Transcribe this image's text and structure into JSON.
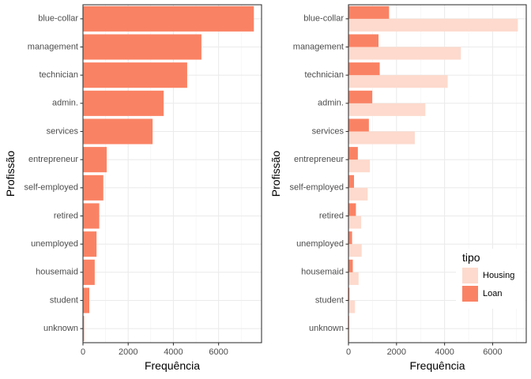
{
  "chart_data": [
    {
      "type": "bar",
      "orientation": "horizontal",
      "categories": [
        "blue-collar",
        "management",
        "technician",
        "admin.",
        "services",
        "entrepreneur",
        "self-employed",
        "retired",
        "unemployed",
        "housemaid",
        "student",
        "unknown"
      ],
      "series": [
        {
          "values": [
            7560,
            5240,
            4610,
            3570,
            3080,
            1050,
            900,
            720,
            600,
            520,
            280,
            50
          ]
        }
      ],
      "xlabel": "Frequência",
      "ylabel": "Profissão",
      "xlim": [
        0,
        7900
      ],
      "xticks": [
        0,
        2000,
        4000,
        6000
      ],
      "grid": true,
      "colors": [
        "#FA8264"
      ]
    },
    {
      "type": "bar",
      "orientation": "horizontal",
      "overlay": true,
      "categories": [
        "blue-collar",
        "management",
        "technician",
        "admin.",
        "services",
        "entrepreneur",
        "self-employed",
        "retired",
        "unemployed",
        "housemaid",
        "student",
        "unknown"
      ],
      "series": [
        {
          "name": "Housing",
          "values": [
            7050,
            4680,
            4130,
            3200,
            2760,
            890,
            800,
            530,
            550,
            420,
            270,
            40
          ]
        },
        {
          "name": "Loan",
          "values": [
            1690,
            1250,
            1300,
            990,
            850,
            390,
            230,
            310,
            150,
            180,
            40,
            5
          ]
        }
      ],
      "xlabel": "Frequência",
      "ylabel": "Profissão",
      "xlim": [
        0,
        7400
      ],
      "xticks": [
        0,
        2000,
        4000,
        6000
      ],
      "grid": true,
      "legend": {
        "title": "tipo",
        "position": "bottom-right"
      },
      "colors": [
        "#FDDACD",
        "#FA8264"
      ]
    }
  ]
}
